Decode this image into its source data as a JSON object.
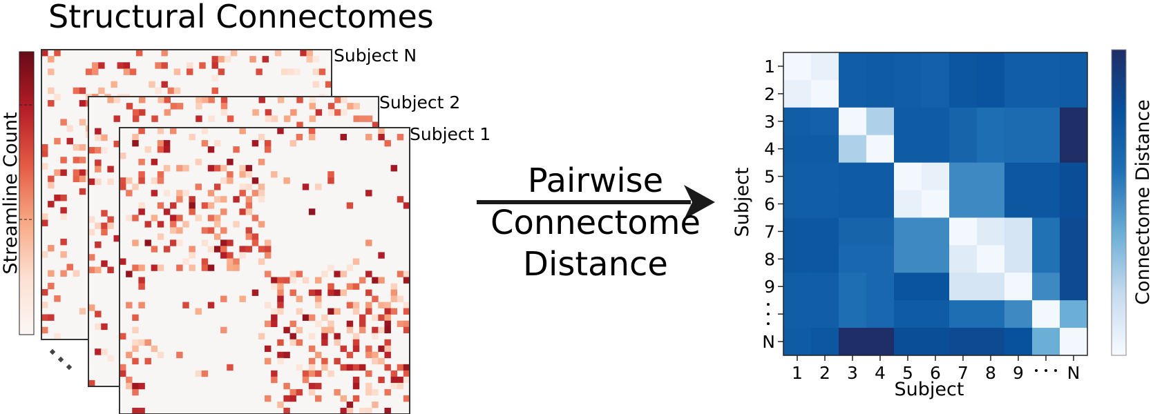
{
  "title": "Structural Connectomes",
  "left_colorbar": {
    "label": "Streamline Count",
    "colors": [
      "#fbf7f5",
      "#fde0d2",
      "#f8a884",
      "#e45a44",
      "#b41d26",
      "#680a17"
    ]
  },
  "subjects": [
    "Subject N",
    "Subject 2",
    "Subject 1"
  ],
  "stack_ellipsis": "...",
  "arrow_text": [
    "Pairwise",
    "Connectome",
    "Distance"
  ],
  "heatmap": {
    "x_label": "Subject",
    "y_label": "Subject",
    "tick_labels": [
      "1",
      "2",
      "3",
      "4",
      "5",
      "6",
      "7",
      "8",
      "9",
      "·",
      "N"
    ],
    "colorbar_label": "Connectome Distance",
    "colorbar_colors": [
      "#f7fbff",
      "#c6dbef",
      "#6baed6",
      "#2171b5",
      "#08519c",
      "#1f2e67"
    ]
  },
  "chart_data": {
    "type": "heatmap",
    "title": "",
    "xlabel": "Subject",
    "ylabel": "Subject",
    "rows": [
      "1",
      "2",
      "3",
      "4",
      "5",
      "6",
      "7",
      "8",
      "9",
      "…",
      "N"
    ],
    "cols": [
      "1",
      "2",
      "3",
      "4",
      "5",
      "6",
      "7",
      "8",
      "9",
      "…",
      "N"
    ],
    "scale": "relative distance 0 (low) to 1 (high)",
    "values": [
      [
        0.02,
        0.06,
        0.72,
        0.74,
        0.72,
        0.7,
        0.77,
        0.78,
        0.72,
        0.72,
        0.74
      ],
      [
        0.06,
        0.02,
        0.72,
        0.74,
        0.72,
        0.7,
        0.77,
        0.78,
        0.72,
        0.72,
        0.74
      ],
      [
        0.72,
        0.7,
        0.02,
        0.25,
        0.74,
        0.74,
        0.68,
        0.62,
        0.64,
        0.64,
        1.0
      ],
      [
        0.74,
        0.74,
        0.25,
        0.02,
        0.74,
        0.74,
        0.68,
        0.62,
        0.64,
        0.64,
        1.0
      ],
      [
        0.72,
        0.72,
        0.74,
        0.74,
        0.02,
        0.06,
        0.52,
        0.52,
        0.76,
        0.76,
        0.82
      ],
      [
        0.72,
        0.72,
        0.74,
        0.74,
        0.06,
        0.02,
        0.52,
        0.52,
        0.76,
        0.76,
        0.82
      ],
      [
        0.76,
        0.76,
        0.68,
        0.68,
        0.52,
        0.52,
        0.02,
        0.1,
        0.14,
        0.6,
        0.84
      ],
      [
        0.76,
        0.76,
        0.66,
        0.66,
        0.52,
        0.52,
        0.1,
        0.02,
        0.14,
        0.6,
        0.84
      ],
      [
        0.72,
        0.72,
        0.62,
        0.66,
        0.78,
        0.78,
        0.14,
        0.14,
        0.02,
        0.52,
        0.84
      ],
      [
        0.72,
        0.72,
        0.62,
        0.66,
        0.74,
        0.74,
        0.62,
        0.62,
        0.52,
        0.02,
        0.4
      ],
      [
        0.74,
        0.76,
        1.0,
        1.0,
        0.82,
        0.82,
        0.84,
        0.84,
        0.8,
        0.4,
        0.02
      ]
    ]
  }
}
